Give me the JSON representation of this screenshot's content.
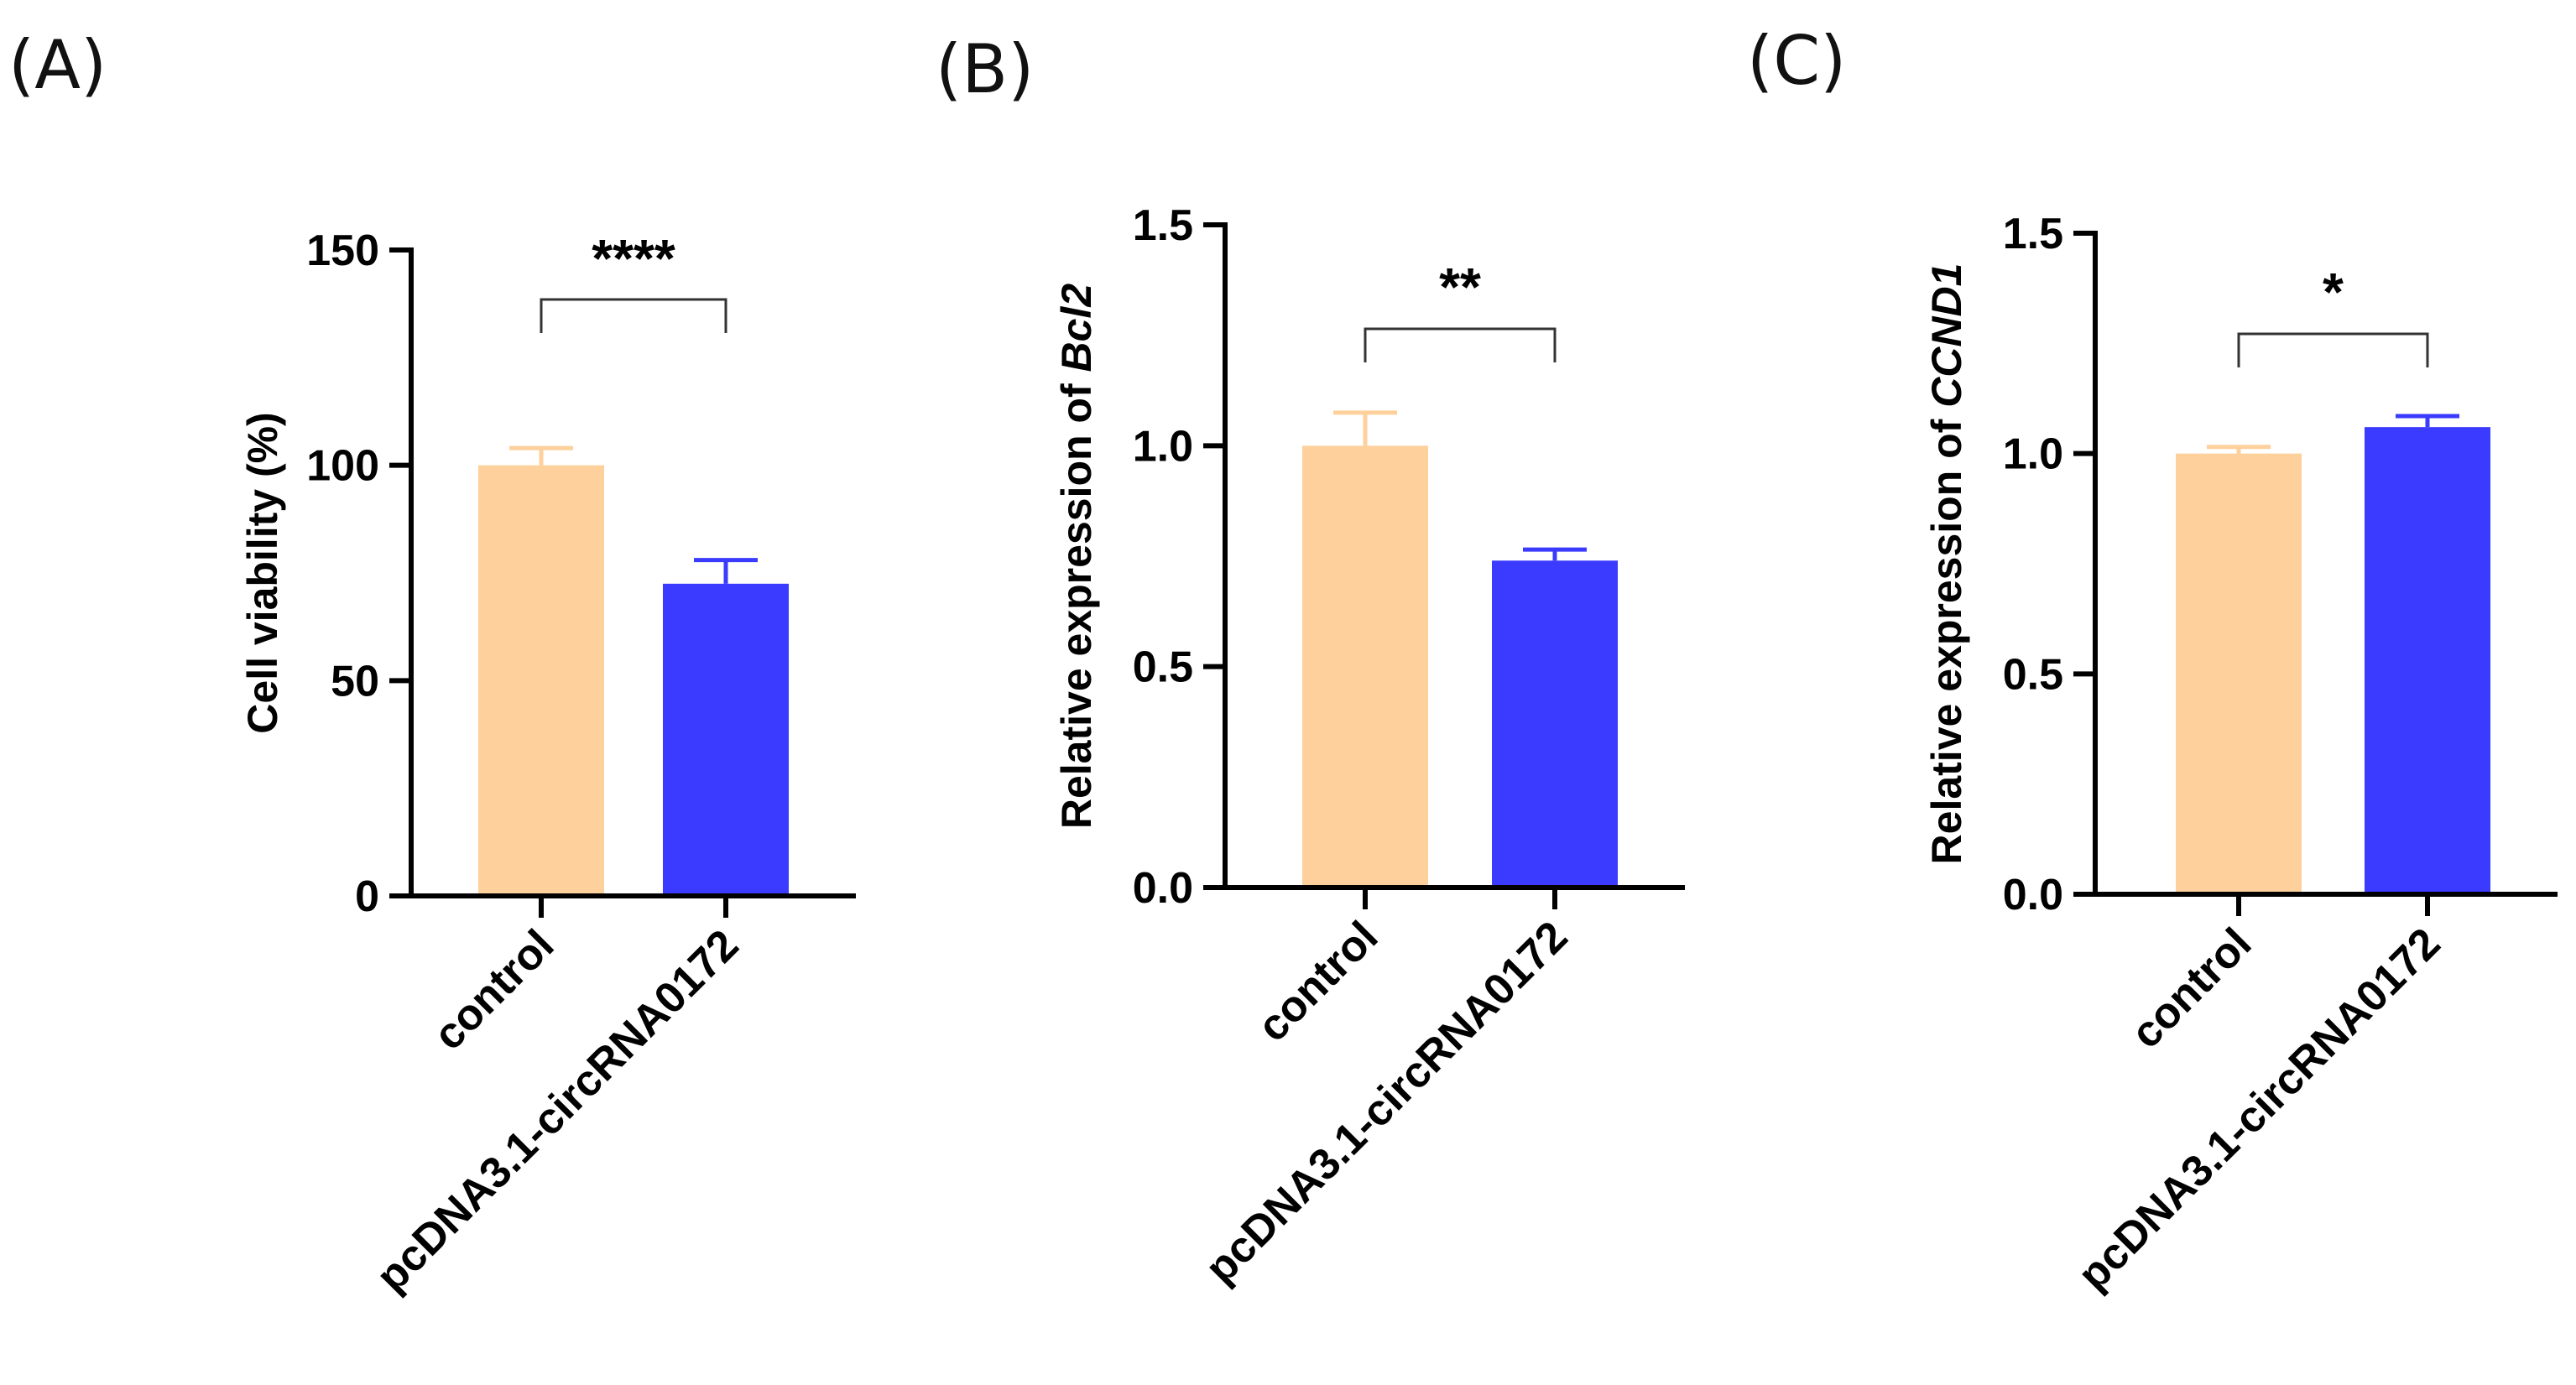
{
  "colors": {
    "control": "#FDD09C",
    "treatment": "#3B3BFF",
    "axis": "#000000",
    "bracket": "#333333"
  },
  "chart_data": [
    {
      "type": "bar",
      "panel_label": "(A)",
      "title": "",
      "ylabel": "Cell viability (%)",
      "ylabel_gene": "",
      "ylim": [
        0,
        150
      ],
      "yticks": [
        0,
        50,
        100,
        150
      ],
      "ytick_labels": [
        "0",
        "50",
        "100",
        "150"
      ],
      "categories": [
        "control",
        "pcDNA3.1-circRNA0172"
      ],
      "values": [
        100,
        72.5
      ],
      "errors": [
        4,
        5.5
      ],
      "significance": "****"
    },
    {
      "type": "bar",
      "panel_label": "(B)",
      "title": "",
      "ylabel": "Relative expression of ",
      "ylabel_gene": "Bcl2",
      "ylim": [
        0,
        1.5
      ],
      "yticks": [
        0,
        0.5,
        1.0,
        1.5
      ],
      "ytick_labels": [
        "0.0",
        "0.5",
        "1.0",
        "1.5"
      ],
      "categories": [
        "control",
        "pcDNA3.1-circRNA0172"
      ],
      "values": [
        1.0,
        0.74
      ],
      "errors": [
        0.075,
        0.025
      ],
      "significance": "**"
    },
    {
      "type": "bar",
      "panel_label": "(C)",
      "title": "",
      "ylabel": "Relative expression of ",
      "ylabel_gene": "CCND1",
      "ylim": [
        0,
        1.5
      ],
      "yticks": [
        0,
        0.5,
        1.0,
        1.5
      ],
      "ytick_labels": [
        "0.0",
        "0.5",
        "1.0",
        "1.5"
      ],
      "categories": [
        "control",
        "pcDNA3.1-circRNA0172"
      ],
      "values": [
        1.0,
        1.06
      ],
      "errors": [
        0.015,
        0.025
      ],
      "significance": "*"
    }
  ]
}
